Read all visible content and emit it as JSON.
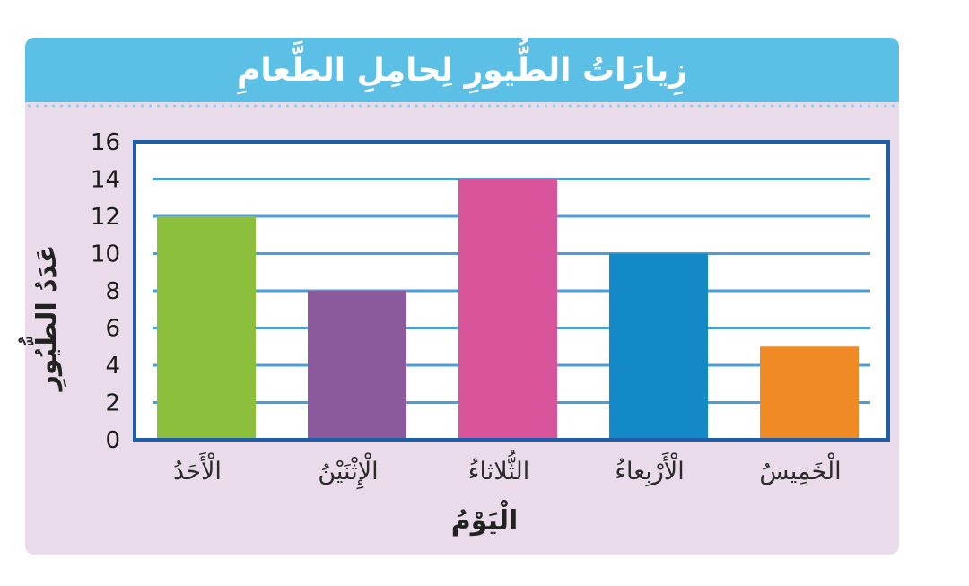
{
  "chart_data": {
    "type": "bar",
    "title": "زِيارَاتُ الطُّيورِ لِحامِلِ الطَّعامِ",
    "xlabel": "الْيَوْمُ",
    "ylabel": "عَدَدُ الطُّيُورِ",
    "categories": [
      "الْأَحَدُ",
      "الْإِثْنَيْنُ",
      "الثُّلاثاءُ",
      "الْأَرْبِعاءُ",
      "الْخَمِيسُ"
    ],
    "values": [
      12,
      8,
      14,
      10,
      5
    ],
    "colors": [
      "#8cc03c",
      "#8a5a9c",
      "#d9549a",
      "#1389c7",
      "#f08a24"
    ],
    "ylim": [
      0,
      16
    ],
    "yticks": [
      0,
      2,
      4,
      6,
      8,
      10,
      12,
      14,
      16
    ],
    "grid": true,
    "frame_color": "#1d5ea8",
    "grid_color": "#4b9fd8"
  }
}
